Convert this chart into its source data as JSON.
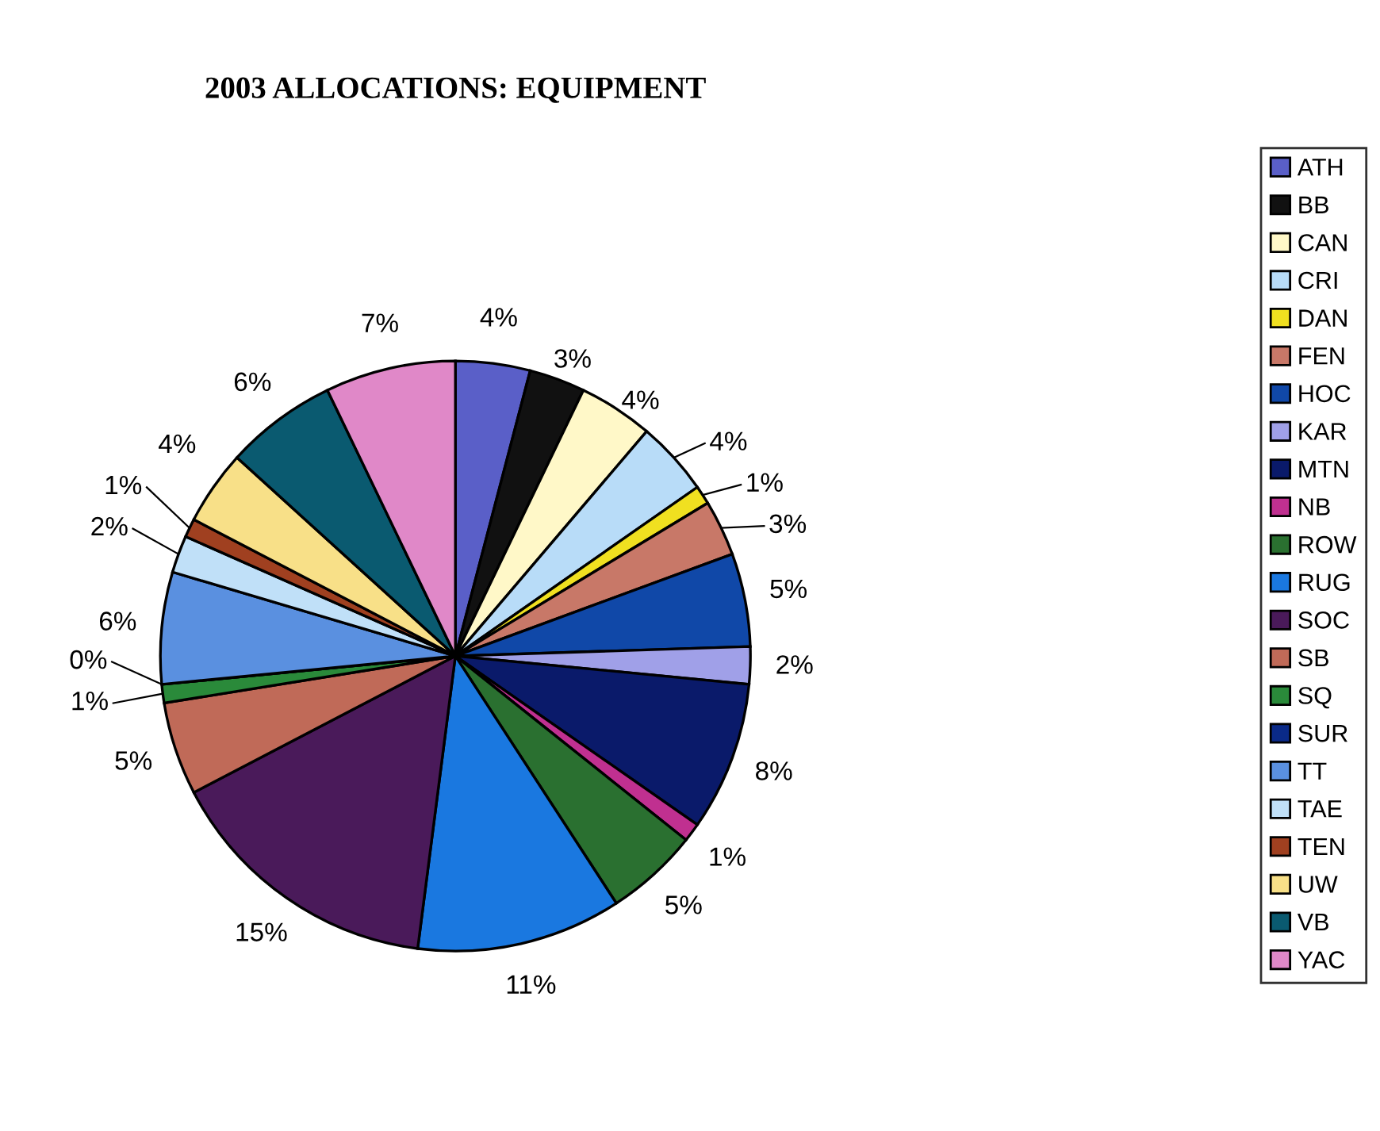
{
  "chart_data": {
    "type": "pie",
    "title": "2003 ALLOCATIONS: EQUIPMENT",
    "categories": [
      "ATH",
      "BB",
      "CAN",
      "CRI",
      "DAN",
      "FEN",
      "HOC",
      "KAR",
      "MTN",
      "NB",
      "ROW",
      "RUG",
      "SOC",
      "SB",
      "SQ",
      "SUR",
      "TT",
      "TAE",
      "TEN",
      "UW",
      "VB",
      "YAC"
    ],
    "values": [
      4,
      3,
      4,
      4,
      1,
      3,
      5,
      2,
      8,
      1,
      5,
      11,
      15,
      5,
      1,
      0,
      6,
      2,
      1,
      4,
      6,
      7
    ],
    "colors": [
      "#5a5fc8",
      "#111111",
      "#fff8c8",
      "#b8dcf8",
      "#f0e020",
      "#c87868",
      "#1048a8",
      "#a0a0e8",
      "#0a1a6a",
      "#c03090",
      "#2a7030",
      "#1a78e0",
      "#4a1a5a",
      "#c06a58",
      "#2a8a3a",
      "#0a2a88",
      "#5a90e0",
      "#c0e0f8",
      "#a04020",
      "#f8e088",
      "#0a5a70",
      "#e088c8"
    ],
    "value_labels": [
      "4%",
      "3%",
      "4%",
      "4%",
      "1%",
      "3%",
      "5%",
      "2%",
      "8%",
      "1%",
      "5%",
      "11%",
      "15%",
      "5%",
      "1%",
      "0%",
      "6%",
      "2%",
      "1%",
      "4%",
      "6%",
      "7%"
    ],
    "legend": "right"
  }
}
